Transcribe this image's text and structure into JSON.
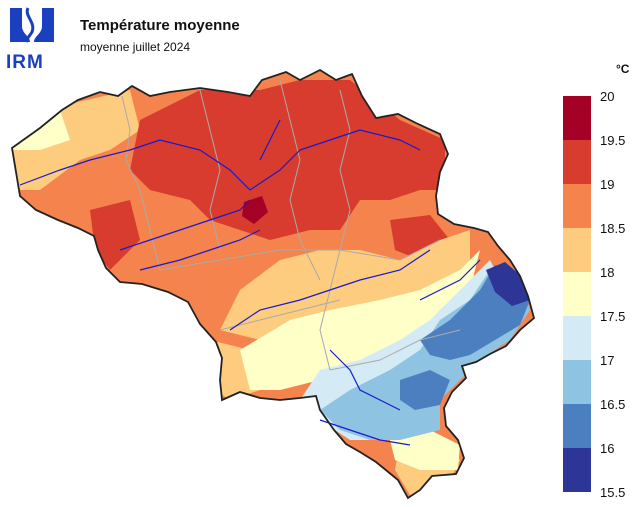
{
  "header": {
    "logo_text": "IRM",
    "title": "Température moyenne",
    "subtitle": "moyenne juillet 2024"
  },
  "legend": {
    "unit": "°C",
    "ticks": [
      "20",
      "19.5",
      "19",
      "18.5",
      "18",
      "17.5",
      "17",
      "16.5",
      "16",
      "15.5"
    ],
    "bins": [
      {
        "range": [
          19.5,
          20
        ],
        "color": "#a50026"
      },
      {
        "range": [
          19,
          19.5
        ],
        "color": "#d73c2e"
      },
      {
        "range": [
          18.5,
          19
        ],
        "color": "#f4834e"
      },
      {
        "range": [
          18,
          18.5
        ],
        "color": "#fdcc7e"
      },
      {
        "range": [
          17.5,
          18
        ],
        "color": "#ffffc8"
      },
      {
        "range": [
          17,
          17.5
        ],
        "color": "#d4eaf4"
      },
      {
        "range": [
          16.5,
          17
        ],
        "color": "#8fc3e2"
      },
      {
        "range": [
          16,
          16.5
        ],
        "color": "#4c7fc0"
      },
      {
        "range": [
          15.5,
          16
        ],
        "color": "#2d3596"
      }
    ]
  },
  "map": {
    "region": "Belgium",
    "border_color": "#222222",
    "river_color": "#1a1acc",
    "province_border_color": "#aaaaaa"
  }
}
